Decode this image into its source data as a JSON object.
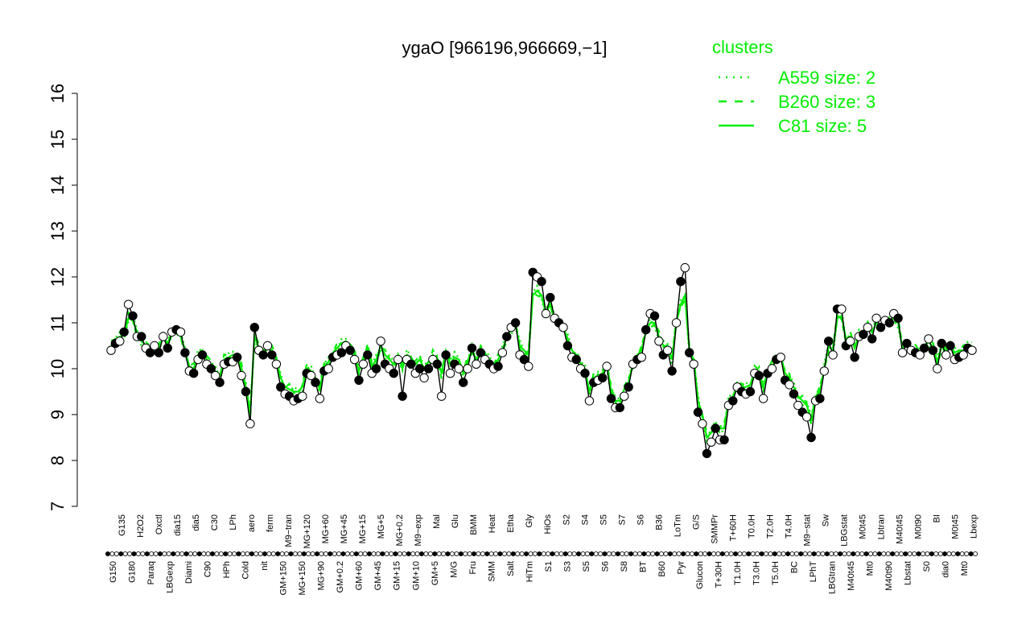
{
  "chart_data": {
    "type": "line",
    "title": "ygaO [966196,966669,−1]",
    "xlabel": "",
    "ylabel": "",
    "ylim": [
      7,
      16
    ],
    "yticks": [
      7,
      8,
      9,
      10,
      11,
      12,
      13,
      14,
      15,
      16
    ],
    "xtick_labels_upper": [
      "G135",
      "H2O2",
      "Oxctl",
      "dia15",
      "dia5",
      "C30",
      "LPh",
      "aero",
      "ferm",
      "M9−tran",
      "MG+120",
      "MG+60",
      "MG+45",
      "MG+15",
      "MG+5",
      "MG+0.2",
      "M9−exp",
      "Mal",
      "Glu",
      "BMM",
      "Heat",
      "Etha",
      "Gly",
      "HiOs",
      "S2",
      "S4",
      "S5",
      "S7",
      "S6",
      "B36",
      "LoTm",
      "G/S",
      "SMMPr",
      "T+60H",
      "T0.0H",
      "T2.0H",
      "T4.0H",
      "M9−stat",
      "Sw",
      "LBGstat",
      "M0t45",
      "Lbtran",
      "M40t45",
      "M0t90",
      "BI",
      "M0t45",
      "Lbexp"
    ],
    "xtick_labels_lower": [
      "G150",
      "G180",
      "Paraq",
      "LBGexp",
      "Diami",
      "C90",
      "HPh",
      "Cold",
      "nit",
      "GM+150",
      "MG+150",
      "MG+90",
      "GM+0.2",
      "GM+60",
      "GM+45",
      "GM+15",
      "GM+10",
      "GM+5",
      "M/G",
      "Fru",
      "SMM",
      "Salt",
      "HiTm",
      "S1",
      "S3",
      "S5",
      "S6",
      "S8",
      "BT",
      "B60",
      "Pyr",
      "Glucon",
      "T+30H",
      "T1.0H",
      "T3.0H",
      "T5.0H",
      "BC",
      "LPhT",
      "LBGtran",
      "M40t45",
      "Mt0",
      "M40t90",
      "Lbstat",
      "S0",
      "dia0",
      "Mt0"
    ],
    "series": [
      {
        "values": [
          10.4,
          10.55,
          10.6,
          10.8,
          11.4,
          11.15,
          10.7,
          10.7,
          10.45,
          10.35,
          10.5,
          10.35,
          10.7,
          10.45,
          10.8,
          10.85,
          10.8,
          10.35,
          9.95,
          9.9,
          10.2,
          10.3,
          10.1,
          10.0,
          9.85,
          9.7,
          10.1,
          10.15,
          10.15,
          10.25,
          9.85,
          9.5,
          8.8,
          10.9,
          10.4,
          10.3,
          10.5,
          10.3,
          10.1,
          9.6,
          9.45,
          9.4,
          9.3,
          9.35,
          9.4,
          9.9,
          9.85,
          9.7,
          9.35,
          9.95,
          10.0,
          10.25,
          10.3,
          10.35,
          10.5,
          10.4,
          10.2,
          9.75,
          10.1,
          10.3,
          9.9,
          10.0,
          10.6,
          10.1,
          10.0,
          9.9,
          10.2,
          9.4,
          10.2,
          10.1,
          9.9,
          10.0,
          9.8,
          10.0,
          10.2,
          10.1,
          9.4,
          10.3,
          9.9,
          10.1,
          10.0,
          9.7,
          10.0,
          10.45,
          10.1,
          10.35,
          10.2,
          10.1,
          10.0,
          10.05,
          10.35,
          10.7,
          10.9,
          11.0,
          10.3,
          10.2,
          10.05,
          12.1,
          12.0,
          11.9,
          11.2,
          11.55,
          11.1,
          11.0,
          10.9,
          10.5,
          10.25,
          10.2,
          10.0,
          9.9,
          9.3,
          9.7,
          9.75,
          9.8,
          10.05,
          9.35,
          9.15,
          9.15,
          9.4,
          9.6,
          10.1,
          10.2,
          10.25,
          10.85,
          11.2,
          11.15,
          10.6,
          10.3,
          10.4,
          9.95,
          11.0,
          11.9,
          12.2,
          10.35,
          10.1,
          9.05,
          8.8,
          8.15,
          8.4,
          8.7,
          8.45,
          8.45,
          9.2,
          9.3,
          9.6,
          9.5,
          9.45,
          9.5,
          9.9,
          9.85,
          9.35,
          9.9,
          10.0,
          10.2,
          10.25,
          9.75,
          9.65,
          9.45,
          9.2,
          9.05,
          8.95,
          8.5,
          9.3,
          9.35,
          9.95,
          10.6,
          10.3,
          11.3,
          11.3,
          10.5,
          10.6,
          10.25,
          10.7,
          10.75,
          10.9,
          10.65,
          11.1,
          10.9,
          11.05,
          11.0,
          11.2,
          11.1,
          10.35,
          10.55,
          10.4,
          10.35,
          10.3,
          10.45,
          10.65,
          10.4,
          10.0,
          10.55,
          10.3,
          10.5,
          10.2,
          10.25,
          10.3,
          10.45,
          10.4
        ]
      }
    ],
    "band_values": [
      10.5,
      10.6,
      10.7,
      10.75,
      11.1,
      11.05,
      10.8,
      10.6,
      10.5,
      10.45,
      10.5,
      10.45,
      10.7,
      10.55,
      10.8,
      10.8,
      10.7,
      10.4,
      10.05,
      10.0,
      10.3,
      10.4,
      10.2,
      10.1,
      9.95,
      9.85,
      10.2,
      10.25,
      10.3,
      10.3,
      10.0,
      9.6,
      9.05,
      10.7,
      10.45,
      10.4,
      10.5,
      10.4,
      10.2,
      9.8,
      9.6,
      9.55,
      9.5,
      9.5,
      9.6,
      10.0,
      9.95,
      9.8,
      9.55,
      10.05,
      10.15,
      10.35,
      10.45,
      10.55,
      10.6,
      10.5,
      10.3,
      9.95,
      10.25,
      10.45,
      10.05,
      10.2,
      10.5,
      10.3,
      10.2,
      10.1,
      10.3,
      10.0,
      10.3,
      10.25,
      10.1,
      10.2,
      10.0,
      10.15,
      10.3,
      10.2,
      9.9,
      10.4,
      10.1,
      10.25,
      10.2,
      9.9,
      10.15,
      10.4,
      10.2,
      10.4,
      10.3,
      10.2,
      10.1,
      10.2,
      10.4,
      10.7,
      10.85,
      10.95,
      10.5,
      10.4,
      10.3,
      11.6,
      11.7,
      11.6,
      11.2,
      11.4,
      11.1,
      11.0,
      10.9,
      10.65,
      10.4,
      10.3,
      10.1,
      10.0,
      9.5,
      9.8,
      9.85,
      9.9,
      10.1,
      9.5,
      9.3,
      9.3,
      9.55,
      9.7,
      10.1,
      10.3,
      10.4,
      10.8,
      11.0,
      11.0,
      10.7,
      10.5,
      10.5,
      10.2,
      11.0,
      11.4,
      11.6,
      10.4,
      10.2,
      9.3,
      9.0,
      8.5,
      8.6,
      8.8,
      8.7,
      8.7,
      9.3,
      9.4,
      9.65,
      9.6,
      9.6,
      9.65,
      9.95,
      9.95,
      9.6,
      9.95,
      10.05,
      10.2,
      10.3,
      9.9,
      9.8,
      9.6,
      9.4,
      9.3,
      9.2,
      8.9,
      9.4,
      9.5,
      10.0,
      10.5,
      10.4,
      11.1,
      11.15,
      10.65,
      10.7,
      10.45,
      10.75,
      10.8,
      10.9,
      10.8,
      11.0,
      10.9,
      11.0,
      11.0,
      11.1,
      11.0,
      10.45,
      10.55,
      10.45,
      10.4,
      10.35,
      10.5,
      10.6,
      10.45,
      10.15,
      10.5,
      10.4,
      10.5,
      10.35,
      10.4,
      10.4,
      10.5,
      10.5
    ],
    "legend": {
      "title": "clusters",
      "position": "top-right",
      "items": [
        {
          "label": "A559 size: 2",
          "style": "dotted"
        },
        {
          "label": "B260 size: 3",
          "style": "dashed"
        },
        {
          "label": "C81 size: 5",
          "style": "solid"
        }
      ]
    },
    "colors": {
      "band": "#00ee00",
      "legend": "#00ee00",
      "line": "#000000",
      "point_filled": "#000000",
      "point_open": "#ffffff"
    }
  }
}
